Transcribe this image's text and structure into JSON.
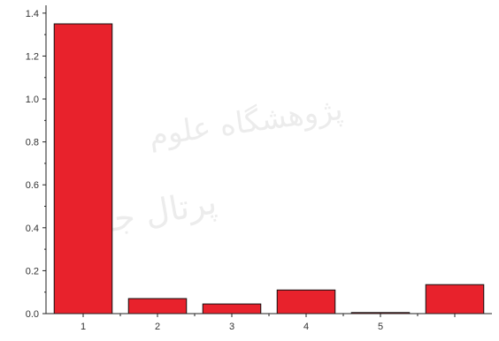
{
  "chart_data": {
    "type": "bar",
    "title": "",
    "xlabel": "",
    "ylabel": "",
    "categories": [
      "1",
      "2",
      "3",
      "4",
      "5",
      ""
    ],
    "values": [
      1.35,
      0.07,
      0.045,
      0.11,
      0.005,
      0.135
    ],
    "ylim": [
      0,
      1.42
    ],
    "yticks": [
      "0.0",
      "0.2",
      "0.4",
      "0.6",
      "0.8",
      "1.0",
      "1.2",
      "1.4"
    ],
    "bar_color": "#e8222c",
    "bar_edge_color": "#111111",
    "grid": false,
    "legend": "none"
  },
  "watermark": {
    "lines": [
      "پژوهشگاه علوم",
      "پرتال جامع"
    ]
  }
}
